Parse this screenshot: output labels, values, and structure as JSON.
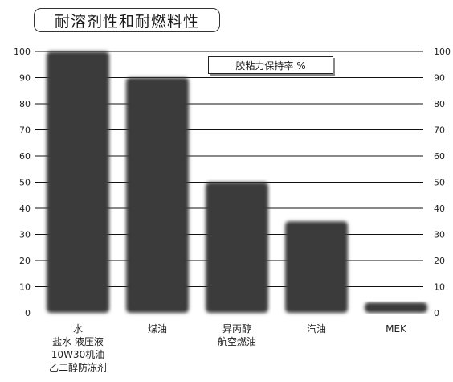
{
  "title": "耐溶剂性和耐燃料性",
  "chart_data": {
    "type": "bar",
    "title": "耐溶剂性和耐燃料性",
    "legend": "胶粘力保持率 %",
    "categories": [
      [
        "水",
        "盐水 液压液",
        "10W30机油",
        "乙二醇防冻剂"
      ],
      [
        "煤油"
      ],
      [
        "异丙醇",
        "航空燃油"
      ],
      [
        "汽油"
      ],
      [
        "MEK"
      ]
    ],
    "values": [
      100,
      90,
      50,
      35,
      4
    ],
    "ylim": [
      0,
      100
    ],
    "yticks": [
      0,
      10,
      20,
      30,
      40,
      50,
      60,
      70,
      80,
      90,
      100
    ],
    "y_axis_both_sides": true,
    "grid": true,
    "bar_color": "#3a3a3a",
    "grid_color": "#111111"
  }
}
